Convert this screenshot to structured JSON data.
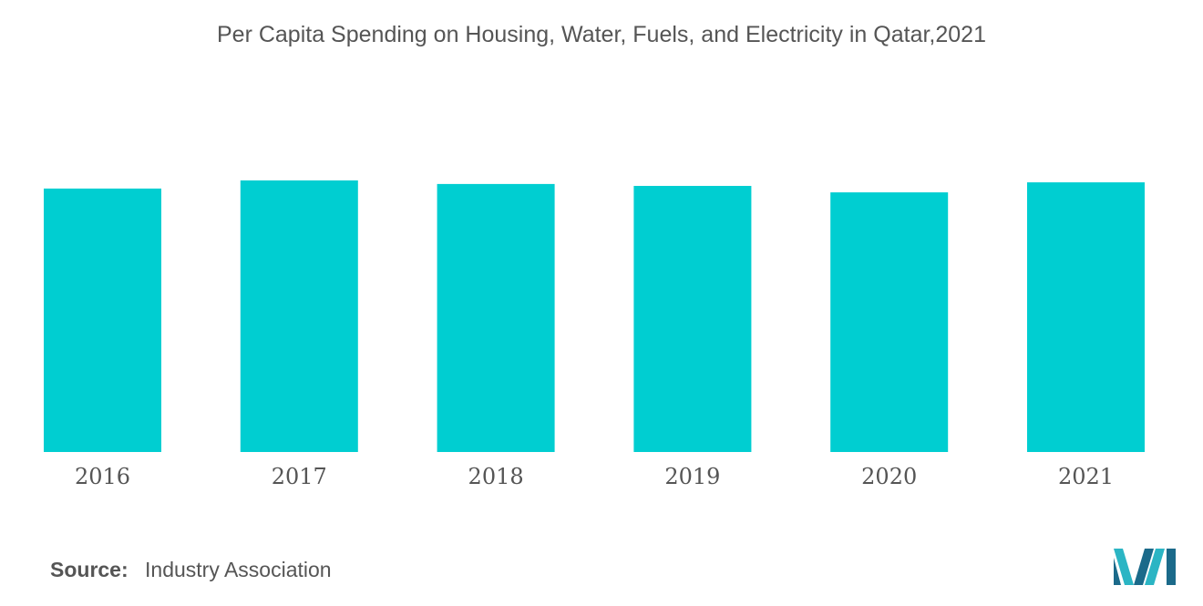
{
  "chart_data": {
    "type": "bar",
    "title": "Per Capita Spending on Housing, Water, Fuels, and Electricity in Qatar,2021",
    "categories": [
      "2016",
      "2017",
      "2018",
      "2019",
      "2020",
      "2021"
    ],
    "values": [
      0.97,
      1.0,
      0.987,
      0.98,
      0.956,
      0.993
    ],
    "xlabel": "",
    "ylabel": "",
    "ylim": [
      0,
      1.0
    ],
    "grid": false,
    "legend": "none",
    "colors": {
      "bar": "#00CED1",
      "tick_text": "#555555"
    }
  },
  "footer": {
    "source_label": "Source:",
    "source_value": "Industry Association"
  },
  "logo": {
    "icon": "mordor-intelligence-logo-icon",
    "colors": [
      "#1B6A8A",
      "#2BB5C4"
    ]
  }
}
